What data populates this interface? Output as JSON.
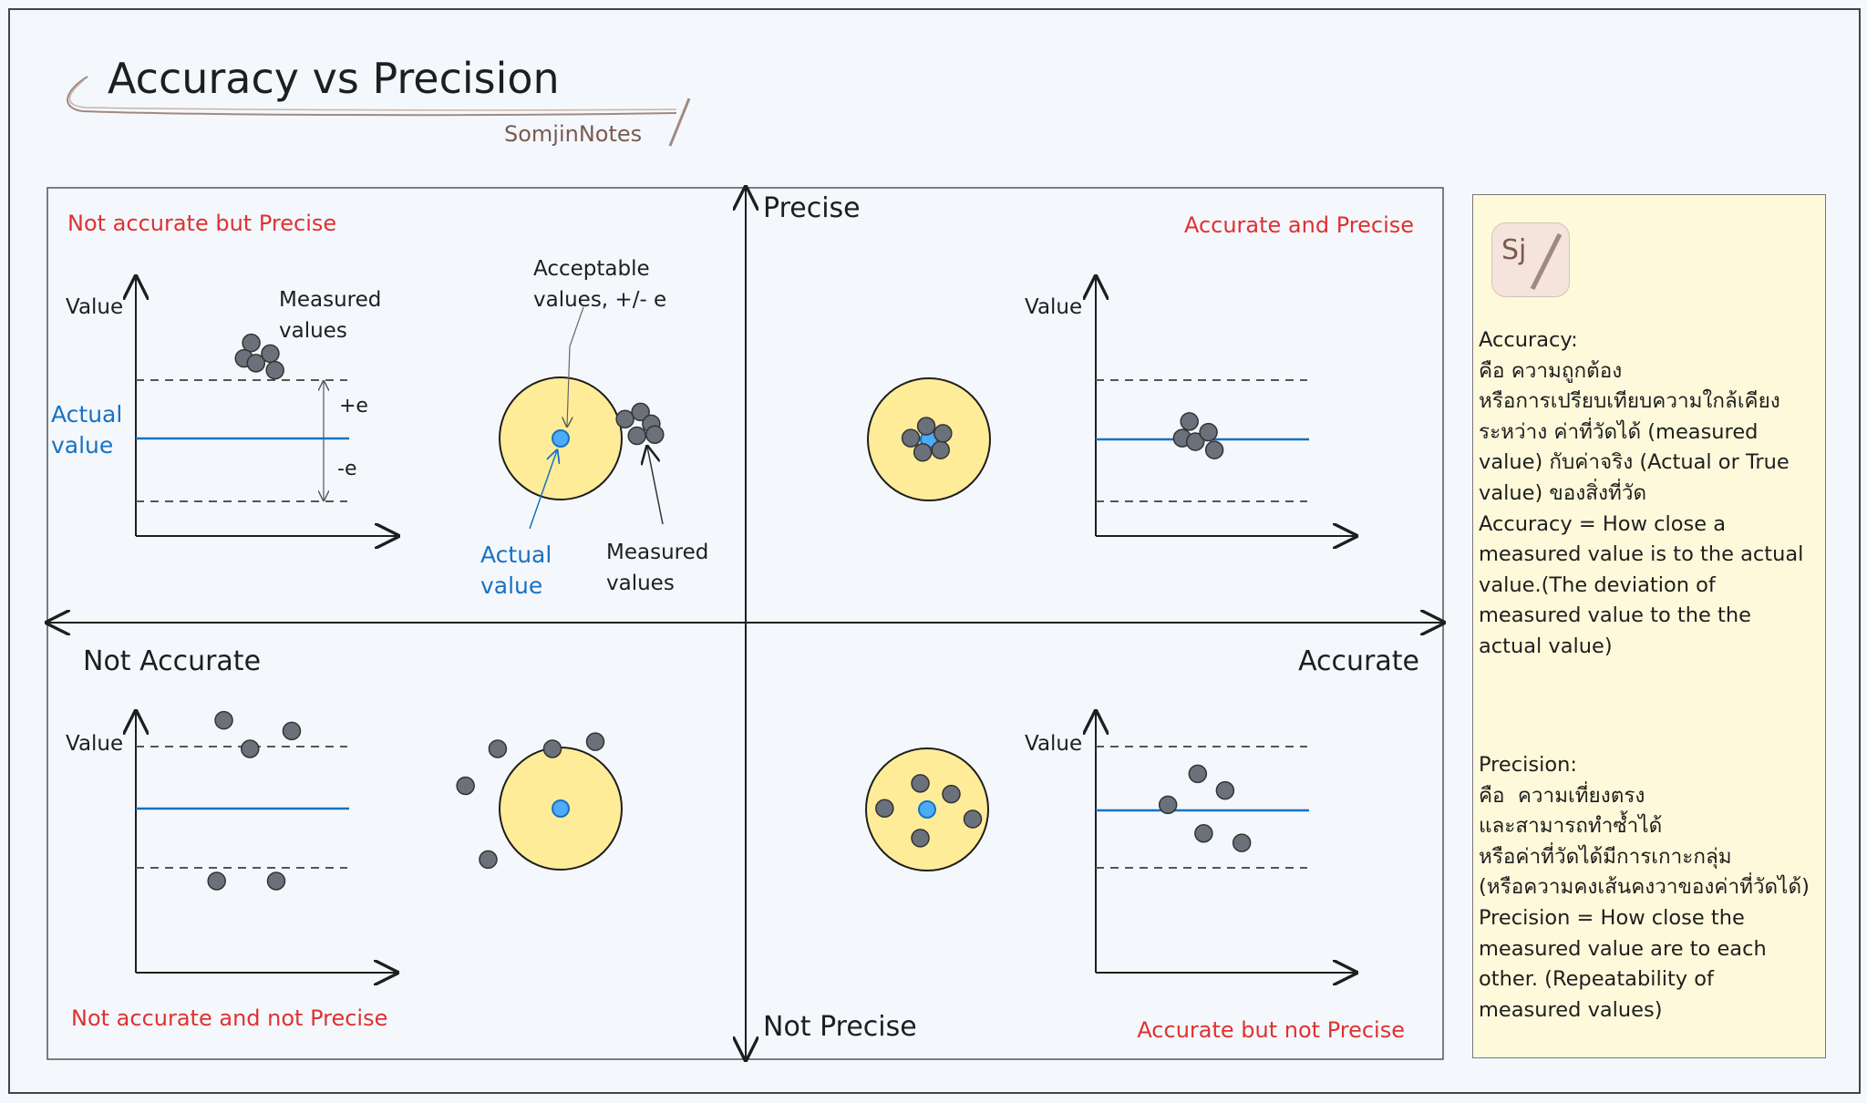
{
  "title": "Accuracy vs Precision",
  "brand": "SomjinNotes",
  "axes": {
    "top": "Precise",
    "bottom": "Not Precise",
    "left": "Not Accurate",
    "right": "Accurate"
  },
  "quadrants": {
    "top_left": {
      "label": "Not accurate but Precise",
      "y_axis_label": "Value",
      "measured_label": [
        "Measured",
        "values"
      ],
      "actual_label": [
        "Actual",
        "value"
      ],
      "plus_e": "+e",
      "minus_e": "-e",
      "target_acceptable_label": [
        "Acceptable",
        "values, +/- e"
      ],
      "target_e": "e",
      "target_actual_label": [
        "Actual",
        "value"
      ],
      "target_measured_label": [
        "Measured",
        "values"
      ]
    },
    "top_right": {
      "label": "Accurate and Precise",
      "y_axis_label": "Value"
    },
    "bottom_left": {
      "label": "Not accurate and not Precise",
      "y_axis_label": "Value"
    },
    "bottom_right": {
      "label": "Accurate but not Precise",
      "y_axis_label": "Value"
    }
  },
  "colors": {
    "actual": "#1971c2",
    "label_red": "#e03131",
    "target_fill": "#ffec99",
    "dot": "#6b717a",
    "note_bg": "#fff9db"
  },
  "side_note": {
    "logo_text": "Sj",
    "accuracy": "Accuracy:\nคือ ความถูกต้อง\nหรือการเปรียบเทียบความใกล้เคียง\nระหว่าง ค่าที่วัดได้ (measured value) กับค่าจริง (Actual or True value) ของสิ่งที่วัด\nAccuracy = How close a measured value is to the actual value.(The deviation of measured value to the the actual value)",
    "precision": "Precision:\nคือ  ความเที่ยงตรง\nและสามารถทำซ้ำได้\nหรือค่าที่วัดได้มีการเกาะกลุ่ม\n(หรือความคงเส้นคงวาของค่าที่วัดได้)\nPrecision = How close the measured value are to each other. (Repeatability of measured values)"
  }
}
